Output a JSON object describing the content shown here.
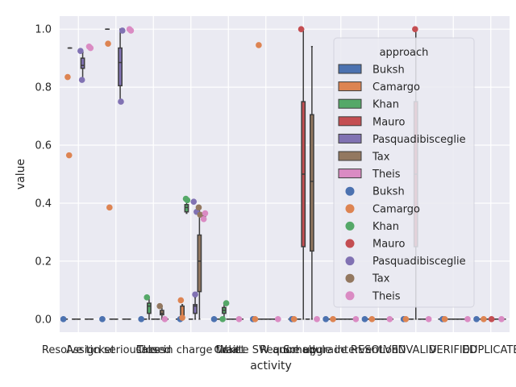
{
  "chart_data": {
    "type": "box",
    "xlabel": "activity",
    "ylabel": "value",
    "ylim": [
      -0.045,
      1.045
    ],
    "yticks": [
      0.0,
      0.2,
      0.4,
      0.6,
      0.8,
      1.0
    ],
    "ytick_labels": [
      "0.0",
      "0.2",
      "0.4",
      "0.6",
      "0.8",
      "1.0"
    ],
    "grid": true,
    "legend_title": "approach",
    "legend_placement": "upper right",
    "categories": [
      "Resolve ticket",
      "Assign seriousness",
      "Closed",
      "Take in charge ticket",
      "Wait",
      "Create SW anomaly",
      "Require upgrade",
      "Schedule intervention",
      "RESOLVED",
      "INVALID",
      "VERIFIED",
      "DUPLICATE"
    ],
    "series": [
      {
        "name": "Buksh",
        "color": "#4c72b0",
        "boxes": [
          {
            "q1": 0,
            "median": 0,
            "q3": 0,
            "whislo": 0,
            "whishi": 0
          },
          {
            "q1": 0,
            "median": 0,
            "q3": 0,
            "whislo": 0,
            "whishi": 0
          },
          {
            "q1": 0,
            "median": 0,
            "q3": 0,
            "whislo": 0,
            "whishi": 0
          },
          {
            "q1": 0,
            "median": 0,
            "q3": 0,
            "whislo": 0,
            "whishi": 0
          },
          {
            "q1": 0,
            "median": 0,
            "q3": 0,
            "whislo": 0,
            "whishi": 0
          },
          {
            "q1": 0,
            "median": 0,
            "q3": 0,
            "whislo": 0,
            "whishi": 0
          },
          {
            "q1": 0,
            "median": 0,
            "q3": 0,
            "whislo": 0,
            "whishi": 0
          },
          {
            "q1": 0,
            "median": 0,
            "q3": 0,
            "whislo": 0,
            "whishi": 0
          },
          {
            "q1": 0,
            "median": 0,
            "q3": 0,
            "whislo": 0,
            "whishi": 0
          },
          {
            "q1": 0,
            "median": 0,
            "q3": 0,
            "whislo": 0,
            "whishi": 0
          },
          {
            "q1": 0,
            "median": 0,
            "q3": 0,
            "whislo": 0,
            "whishi": 0
          },
          {
            "q1": 0,
            "median": 0,
            "q3": 0,
            "whislo": 0,
            "whishi": 0
          }
        ],
        "points": [
          [
            0,
            0.0
          ],
          [
            1,
            0.0
          ],
          [
            2,
            0.0
          ],
          [
            3,
            0.0
          ],
          [
            4,
            0.0
          ],
          [
            5,
            0.0
          ],
          [
            6,
            0.0
          ],
          [
            7,
            0.0
          ],
          [
            8,
            0.0
          ],
          [
            9,
            0.0
          ],
          [
            10,
            0.0
          ],
          [
            11,
            0.0
          ]
        ]
      },
      {
        "name": "Camargo",
        "color": "#dd8452",
        "boxes": [
          {
            "q1": 0.935,
            "median": 0.935,
            "q3": 0.935,
            "whislo": 0.935,
            "whishi": 0.935
          },
          {
            "q1": 1.0,
            "median": 1.0,
            "q3": 1.0,
            "whislo": 1.0,
            "whishi": 1.0
          },
          {
            "q1": 0,
            "median": 0,
            "q3": 0,
            "whislo": 0,
            "whishi": 0
          },
          {
            "q1": 0,
            "median": 0.005,
            "q3": 0.045,
            "whislo": 0,
            "whishi": 0.05
          },
          {
            "q1": 0,
            "median": 0,
            "q3": 0,
            "whislo": 0,
            "whishi": 0
          },
          {
            "q1": 0,
            "median": 0,
            "q3": 0,
            "whislo": 0,
            "whishi": 0
          },
          {
            "q1": 0,
            "median": 0,
            "q3": 0,
            "whislo": 0,
            "whishi": 0
          },
          {
            "q1": 0,
            "median": 0,
            "q3": 0,
            "whislo": 0,
            "whishi": 0
          },
          {
            "q1": 0,
            "median": 0,
            "q3": 0,
            "whislo": 0,
            "whishi": 0
          },
          {
            "q1": 0,
            "median": 0,
            "q3": 0,
            "whislo": 0,
            "whishi": 0
          },
          {
            "q1": 0,
            "median": 0,
            "q3": 0,
            "whislo": 0,
            "whishi": 0
          },
          {
            "q1": 0,
            "median": 0,
            "q3": 0,
            "whislo": 0,
            "whishi": 0
          }
        ],
        "points": [
          [
            0,
            0.835
          ],
          [
            0,
            0.565
          ],
          [
            1,
            0.95
          ],
          [
            1,
            0.385
          ],
          [
            3,
            0.065
          ],
          [
            3,
            0.005
          ],
          [
            5,
            0.945
          ],
          [
            5,
            0.0
          ],
          [
            6,
            0.0
          ],
          [
            7,
            0.0
          ],
          [
            8,
            0.0
          ],
          [
            9,
            0.0
          ],
          [
            10,
            0.0
          ],
          [
            11,
            0.0
          ]
        ]
      },
      {
        "name": "Khan",
        "color": "#55a868",
        "boxes": [
          {
            "q1": 0,
            "median": 0,
            "q3": 0,
            "whislo": 0,
            "whishi": 0
          },
          {
            "q1": 0,
            "median": 0,
            "q3": 0,
            "whislo": 0,
            "whishi": 0
          },
          {
            "q1": 0.02,
            "median": 0.045,
            "q3": 0.055,
            "whislo": 0.0,
            "whishi": 0.075
          },
          {
            "q1": 0.37,
            "median": 0.385,
            "q3": 0.395,
            "whislo": 0.365,
            "whishi": 0.41
          },
          {
            "q1": 0.02,
            "median": 0.03,
            "q3": 0.04,
            "whislo": 0.0,
            "whishi": 0.055
          },
          {
            "q1": 0,
            "median": 0,
            "q3": 0,
            "whislo": 0,
            "whishi": 0
          },
          {
            "q1": 0,
            "median": 0,
            "q3": 0,
            "whislo": 0,
            "whishi": 0
          },
          {
            "q1": 0,
            "median": 0,
            "q3": 0,
            "whislo": 0,
            "whishi": 0
          },
          {
            "q1": 0,
            "median": 0,
            "q3": 0,
            "whislo": 0,
            "whishi": 0
          },
          {
            "q1": 0,
            "median": 0,
            "q3": 0,
            "whislo": 0,
            "whishi": 0
          },
          {
            "q1": 0,
            "median": 0,
            "q3": 0,
            "whislo": 0,
            "whishi": 0
          },
          {
            "q1": 0,
            "median": 0,
            "q3": 0,
            "whislo": 0,
            "whishi": 0
          }
        ],
        "points": [
          [
            2,
            0.075
          ],
          [
            3,
            0.415
          ],
          [
            3,
            0.41
          ],
          [
            4,
            0.055
          ],
          [
            4,
            0.0
          ]
        ]
      },
      {
        "name": "Mauro",
        "color": "#c44e52",
        "boxes": [
          {
            "q1": 0,
            "median": 0,
            "q3": 0,
            "whislo": 0,
            "whishi": 0
          },
          {
            "q1": 0,
            "median": 0,
            "q3": 0,
            "whislo": 0,
            "whishi": 0
          },
          {
            "q1": 0,
            "median": 0,
            "q3": 0,
            "whislo": 0,
            "whishi": 0
          },
          {
            "q1": 0,
            "median": 0,
            "q3": 0,
            "whislo": 0,
            "whishi": 0
          },
          {
            "q1": 0,
            "median": 0,
            "q3": 0,
            "whislo": 0,
            "whishi": 0
          },
          {
            "q1": 0,
            "median": 0,
            "q3": 0,
            "whislo": 0,
            "whishi": 0
          },
          {
            "q1": 0.25,
            "median": 0.5,
            "q3": 0.75,
            "whislo": 0.0,
            "whishi": 1.0
          },
          {
            "q1": 0,
            "median": 0,
            "q3": 0,
            "whislo": 0,
            "whishi": 0
          },
          {
            "q1": 0,
            "median": 0,
            "q3": 0,
            "whislo": 0,
            "whishi": 0
          },
          {
            "q1": 0.25,
            "median": 0.5,
            "q3": 0.75,
            "whislo": 0.0,
            "whishi": 1.0
          },
          {
            "q1": 0,
            "median": 0,
            "q3": 0,
            "whislo": 0,
            "whishi": 0
          },
          {
            "q1": 0,
            "median": 0,
            "q3": 0,
            "whislo": 0,
            "whishi": 0
          }
        ],
        "points": [
          [
            6,
            1.0
          ],
          [
            9,
            1.0
          ],
          [
            11,
            0.0
          ]
        ]
      },
      {
        "name": "Pasquadibisceglie",
        "color": "#8172b3",
        "boxes": [
          {
            "q1": 0.865,
            "median": 0.875,
            "q3": 0.9,
            "whislo": 0.83,
            "whishi": 0.92
          },
          {
            "q1": 0.805,
            "median": 0.885,
            "q3": 0.935,
            "whislo": 0.75,
            "whishi": 1.0
          },
          {
            "q1": 0,
            "median": 0,
            "q3": 0,
            "whislo": 0,
            "whishi": 0
          },
          {
            "q1": 0.02,
            "median": 0.045,
            "q3": 0.05,
            "whislo": 0.0,
            "whishi": 0.075
          },
          {
            "q1": 0,
            "median": 0,
            "q3": 0,
            "whislo": 0,
            "whishi": 0
          },
          {
            "q1": 0,
            "median": 0,
            "q3": 0,
            "whislo": 0,
            "whishi": 0
          },
          {
            "q1": 0,
            "median": 0,
            "q3": 0,
            "whislo": 0,
            "whishi": 0
          },
          {
            "q1": 0,
            "median": 0,
            "q3": 0,
            "whislo": 0,
            "whishi": 0
          },
          {
            "q1": 0,
            "median": 0,
            "q3": 0,
            "whislo": 0,
            "whishi": 0
          },
          {
            "q1": 0,
            "median": 0,
            "q3": 0,
            "whislo": 0,
            "whishi": 0
          },
          {
            "q1": 0,
            "median": 0,
            "q3": 0,
            "whislo": 0,
            "whishi": 0
          },
          {
            "q1": 0,
            "median": 0,
            "q3": 0,
            "whislo": 0,
            "whishi": 0
          }
        ],
        "points": [
          [
            0,
            0.925
          ],
          [
            0,
            0.825
          ],
          [
            1,
            0.75
          ],
          [
            1,
            0.995
          ],
          [
            3,
            0.405
          ],
          [
            3,
            0.085
          ],
          [
            3,
            0.37
          ]
        ]
      },
      {
        "name": "Tax",
        "color": "#937860",
        "boxes": [
          {
            "q1": 0,
            "median": 0,
            "q3": 0,
            "whislo": 0,
            "whishi": 0
          },
          {
            "q1": 0,
            "median": 0,
            "q3": 0,
            "whislo": 0,
            "whishi": 0
          },
          {
            "q1": 0.015,
            "median": 0.02,
            "q3": 0.03,
            "whislo": 0.0,
            "whishi": 0.045
          },
          {
            "q1": 0.095,
            "median": 0.2,
            "q3": 0.29,
            "whislo": 0.0,
            "whishi": 0.38
          },
          {
            "q1": 0,
            "median": 0,
            "q3": 0,
            "whislo": 0,
            "whishi": 0
          },
          {
            "q1": 0,
            "median": 0,
            "q3": 0,
            "whislo": 0,
            "whishi": 0
          },
          {
            "q1": 0.235,
            "median": 0.475,
            "q3": 0.705,
            "whislo": 0.0,
            "whishi": 0.94
          },
          {
            "q1": 0,
            "median": 0,
            "q3": 0,
            "whislo": 0,
            "whishi": 0
          },
          {
            "q1": 0,
            "median": 0,
            "q3": 0,
            "whislo": 0,
            "whishi": 0
          },
          {
            "q1": 0,
            "median": 0,
            "q3": 0,
            "whislo": 0,
            "whishi": 0
          },
          {
            "q1": 0,
            "median": 0,
            "q3": 0,
            "whislo": 0,
            "whishi": 0
          },
          {
            "q1": 0,
            "median": 0,
            "q3": 0,
            "whislo": 0,
            "whishi": 0
          }
        ],
        "points": [
          [
            2,
            0.045
          ],
          [
            3,
            0.385
          ],
          [
            3,
            0.36
          ]
        ]
      },
      {
        "name": "Theis",
        "color": "#da8bc3",
        "boxes": [
          {
            "q1": 0,
            "median": 0,
            "q3": 0,
            "whislo": 0,
            "whishi": 0
          },
          {
            "q1": 0,
            "median": 0,
            "q3": 0,
            "whislo": 0,
            "whishi": 0
          },
          {
            "q1": 0,
            "median": 0,
            "q3": 0,
            "whislo": 0,
            "whishi": 0
          },
          {
            "q1": 0.35,
            "median": 0.355,
            "q3": 0.36,
            "whislo": 0.345,
            "whishi": 0.365
          },
          {
            "q1": 0,
            "median": 0,
            "q3": 0,
            "whislo": 0,
            "whishi": 0
          },
          {
            "q1": 0,
            "median": 0,
            "q3": 0,
            "whislo": 0,
            "whishi": 0
          },
          {
            "q1": 0,
            "median": 0,
            "q3": 0,
            "whislo": 0,
            "whishi": 0
          },
          {
            "q1": 0,
            "median": 0,
            "q3": 0,
            "whislo": 0,
            "whishi": 0
          },
          {
            "q1": 0,
            "median": 0,
            "q3": 0,
            "whislo": 0,
            "whishi": 0
          },
          {
            "q1": 0,
            "median": 0,
            "q3": 0,
            "whislo": 0,
            "whishi": 0
          },
          {
            "q1": 0,
            "median": 0,
            "q3": 0,
            "whislo": 0,
            "whishi": 0
          },
          {
            "q1": 0,
            "median": 0,
            "q3": 0,
            "whislo": 0,
            "whishi": 0
          }
        ],
        "points": [
          [
            0,
            0.94
          ],
          [
            0,
            0.935
          ],
          [
            1,
            1.0
          ],
          [
            1,
            0.995
          ],
          [
            2,
            0.0
          ],
          [
            3,
            0.345
          ],
          [
            3,
            0.365
          ],
          [
            4,
            0.0
          ],
          [
            5,
            0.0
          ],
          [
            6,
            0.0
          ],
          [
            7,
            0.0
          ],
          [
            8,
            0.0
          ],
          [
            9,
            0.0
          ],
          [
            10,
            0.0
          ],
          [
            11,
            0.0
          ]
        ]
      }
    ]
  }
}
